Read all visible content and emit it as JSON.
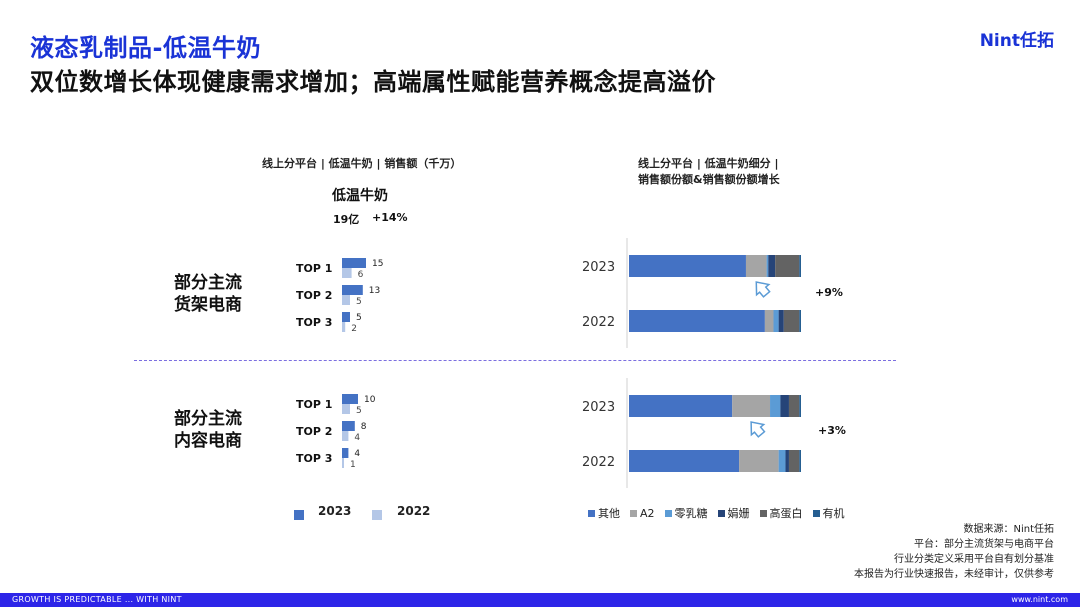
{
  "header": {
    "title": "液态乳制品-低温牛奶",
    "subtitle": "双位数增长体现健康需求增加；高端属性赋能营养概念提高溢价",
    "logo": "Nint任拓"
  },
  "left_panel": {
    "chart_title": "线上分平台 | 低温牛奶 | 销售额（千万）",
    "kpi_title": "低温牛奶",
    "kpi_value": "19亿",
    "kpi_growth": "+14%",
    "group1_line1": "部分主流",
    "group1_line2": "货架电商",
    "group2_line1": "部分主流",
    "group2_line2": "内容电商",
    "legend_2023": "2023",
    "legend_2022": "2022"
  },
  "right_panel": {
    "chart_title_line1": "线上分平台 | 低温牛奶细分 |",
    "chart_title_line2": "销售额份额&销售额份额增长",
    "growth_shelf": "+9%",
    "growth_content": "+3%"
  },
  "source": {
    "line1": "数据来源：Nint任拓",
    "line2": "平台：部分主流货架与电商平台",
    "line3": "行业分类定义采用平台自有划分基准",
    "line4": "本报告为行业快速报告，未经审计，仅供参考"
  },
  "footer": {
    "left": "GROWTH IS PREDICTABLE ... WITH NINT",
    "right": "www.nint.com"
  },
  "colors": {
    "y2023": "#4472c4",
    "y2022": "#b4c7e7",
    "other": "#4472c4",
    "a2": "#a5a5a5",
    "zero_lactose": "#5b9bd5",
    "goat": "#264478",
    "high_protein": "#636363",
    "organic": "#255e91"
  },
  "chart_data": [
    {
      "type": "bar",
      "group": "shelf",
      "categories": [
        "TOP 1",
        "TOP 2",
        "TOP 3"
      ],
      "series": [
        {
          "name": "2023",
          "values": [
            15,
            13,
            5
          ]
        },
        {
          "name": "2022",
          "values": [
            6,
            5,
            2
          ]
        }
      ]
    },
    {
      "type": "bar",
      "group": "content",
      "categories": [
        "TOP 1",
        "TOP 2",
        "TOP 3"
      ],
      "series": [
        {
          "name": "2023",
          "values": [
            10,
            8,
            4
          ]
        },
        {
          "name": "2022",
          "values": [
            5,
            4,
            1
          ]
        }
      ]
    },
    {
      "type": "bar",
      "stacked": true,
      "orientation": "horizontal",
      "segments": [
        "其他",
        "A2",
        "零乳糖",
        "娟姗",
        "高蛋白",
        "有机"
      ],
      "colors": [
        "#4472c4",
        "#a5a5a5",
        "#5b9bd5",
        "#264478",
        "#636363",
        "#255e91"
      ],
      "panels": [
        {
          "group": "shelf",
          "categories": [
            "2023",
            "2022"
          ],
          "shares": [
            [
              68,
              12,
              1,
              4,
              14,
              1
            ],
            [
              79,
              5,
              3,
              3,
              9,
              1
            ]
          ]
        },
        {
          "group": "content",
          "categories": [
            "2023",
            "2022"
          ],
          "shares": [
            [
              60,
              22,
              6,
              5,
              6,
              1
            ],
            [
              64,
              23,
              4,
              2,
              6,
              1
            ]
          ]
        }
      ]
    }
  ]
}
